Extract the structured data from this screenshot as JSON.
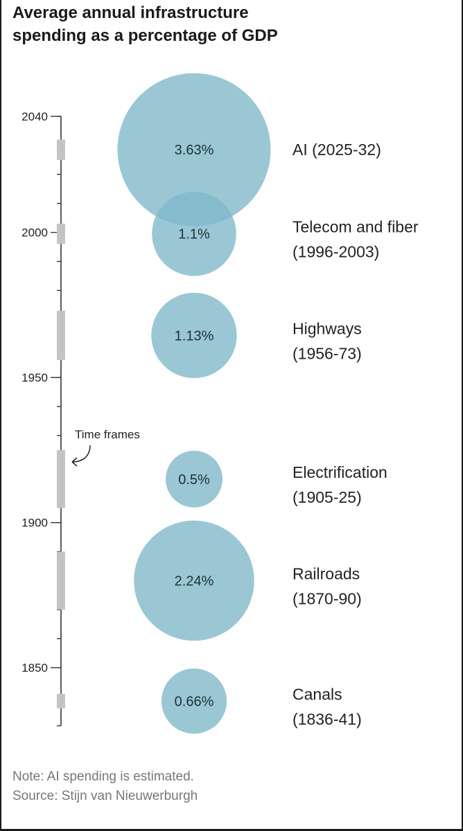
{
  "title_line1": "Average annual infrastructure",
  "title_line2": "spending as a percentage of GDP",
  "annotation": "Time frames",
  "note": "Note: AI spending is estimated.",
  "source": "Source: Stijn van Nieuwerburgh",
  "colors": {
    "bubble": "#7fb7c9",
    "band": "#c4c4c4"
  },
  "chart_data": {
    "type": "bubble-timeline",
    "title": "Average annual infrastructure spending as a percentage of GDP",
    "y_axis": {
      "range": [
        1830,
        2040
      ],
      "ticks": [
        1850,
        1900,
        1950,
        2000,
        2040
      ],
      "minor_step": 10
    },
    "series": [
      {
        "name": "AI",
        "period": "(2025-32)",
        "label_line1": "AI (2025-32)",
        "label_line2": "",
        "start": 2025,
        "end": 2032,
        "value": 3.63,
        "value_label": "3.63%"
      },
      {
        "name": "Telecom and fiber",
        "period": "(1996-2003)",
        "label_line1": "Telecom and fiber",
        "label_line2": "(1996-2003)",
        "start": 1996,
        "end": 2003,
        "value": 1.1,
        "value_label": "1.1%"
      },
      {
        "name": "Highways",
        "period": "(1956-73)",
        "label_line1": "Highways",
        "label_line2": "(1956-73)",
        "start": 1956,
        "end": 1973,
        "value": 1.13,
        "value_label": "1.13%"
      },
      {
        "name": "Electrification",
        "period": "(1905-25)",
        "label_line1": "Electrification",
        "label_line2": "(1905-25)",
        "start": 1905,
        "end": 1925,
        "value": 0.5,
        "value_label": "0.5%"
      },
      {
        "name": "Railroads",
        "period": "(1870-90)",
        "label_line1": "Railroads",
        "label_line2": "(1870-90)",
        "start": 1870,
        "end": 1890,
        "value": 2.24,
        "value_label": "2.24%"
      },
      {
        "name": "Canals",
        "period": "(1836-41)",
        "label_line1": "Canals",
        "label_line2": "(1836-41)",
        "start": 1836,
        "end": 1841,
        "value": 0.66,
        "value_label": "0.66%"
      }
    ]
  }
}
